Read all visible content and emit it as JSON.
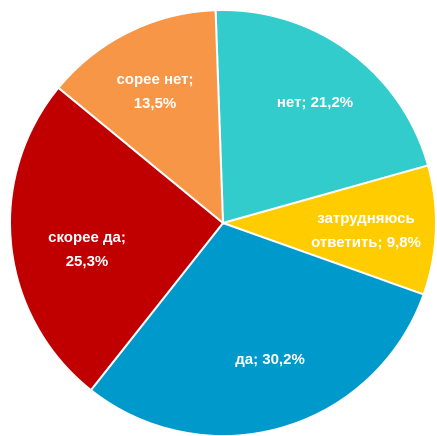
{
  "chart_data": {
    "type": "pie",
    "values": [
      21.2,
      9.8,
      30.2,
      25.3,
      13.5
    ],
    "value_labels": [
      [
        "нет; 21,2%"
      ],
      [
        "затрудняюсь",
        "ответить; 9,8%"
      ],
      [
        "да; 30,2%"
      ],
      [
        "скорее да;",
        "25,3%"
      ],
      [
        "сорее нет;",
        "13,5%"
      ]
    ],
    "colors": [
      "#33CCCC",
      "#FFCC00",
      "#0099CC",
      "#C00000",
      "#F79646"
    ]
  }
}
